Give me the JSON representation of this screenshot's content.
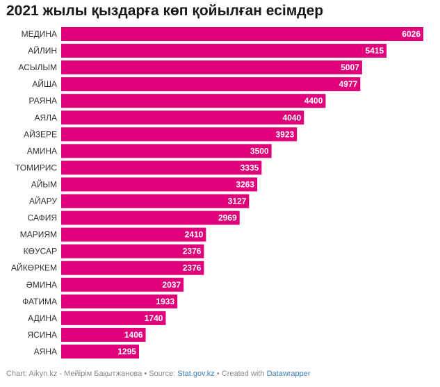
{
  "chart_data": {
    "type": "bar",
    "orientation": "horizontal",
    "title": "2021 жылы қыздарға көп қойылған есімдер",
    "categories": [
      "МЕДИНА",
      "АЙЛИН",
      "АСЫЛЫМ",
      "АЙША",
      "РАЯНА",
      "АЯЛА",
      "АЙЗЕРЕ",
      "АМИНА",
      "ТОМИРИС",
      "АЙЫМ",
      "АЙАРУ",
      "САФИЯ",
      "МАРИЯМ",
      "КӨУСАР",
      "АЙКӨРКЕМ",
      "ӘМИНА",
      "ФАТИМА",
      "АДИНА",
      "ЯСИНА",
      "АЯНА"
    ],
    "values": [
      6026,
      5415,
      5007,
      4977,
      4400,
      4040,
      3923,
      3500,
      3335,
      3263,
      3127,
      2969,
      2410,
      2376,
      2376,
      2037,
      1933,
      1740,
      1406,
      1295
    ],
    "value_labels": [
      "6026",
      "5415",
      "5007",
      "4977",
      "4400",
      "4040",
      "3923",
      "3500",
      "3335",
      "3263",
      "3127",
      "2969",
      "2410",
      "2376",
      "2376",
      "2037",
      "1933",
      "1740",
      "1406",
      "1295"
    ],
    "xlim": [
      0,
      6026
    ],
    "bar_color": "#e0007a",
    "grid": false,
    "legend": "none"
  },
  "footer": {
    "chart_prefix": "Chart: Aikyn.kz - Мейірім Бақытжанова • Source: ",
    "source_link": "Stat.gov.kz",
    "created_prefix": " • Created with ",
    "tool_link": "Datawrapper"
  }
}
